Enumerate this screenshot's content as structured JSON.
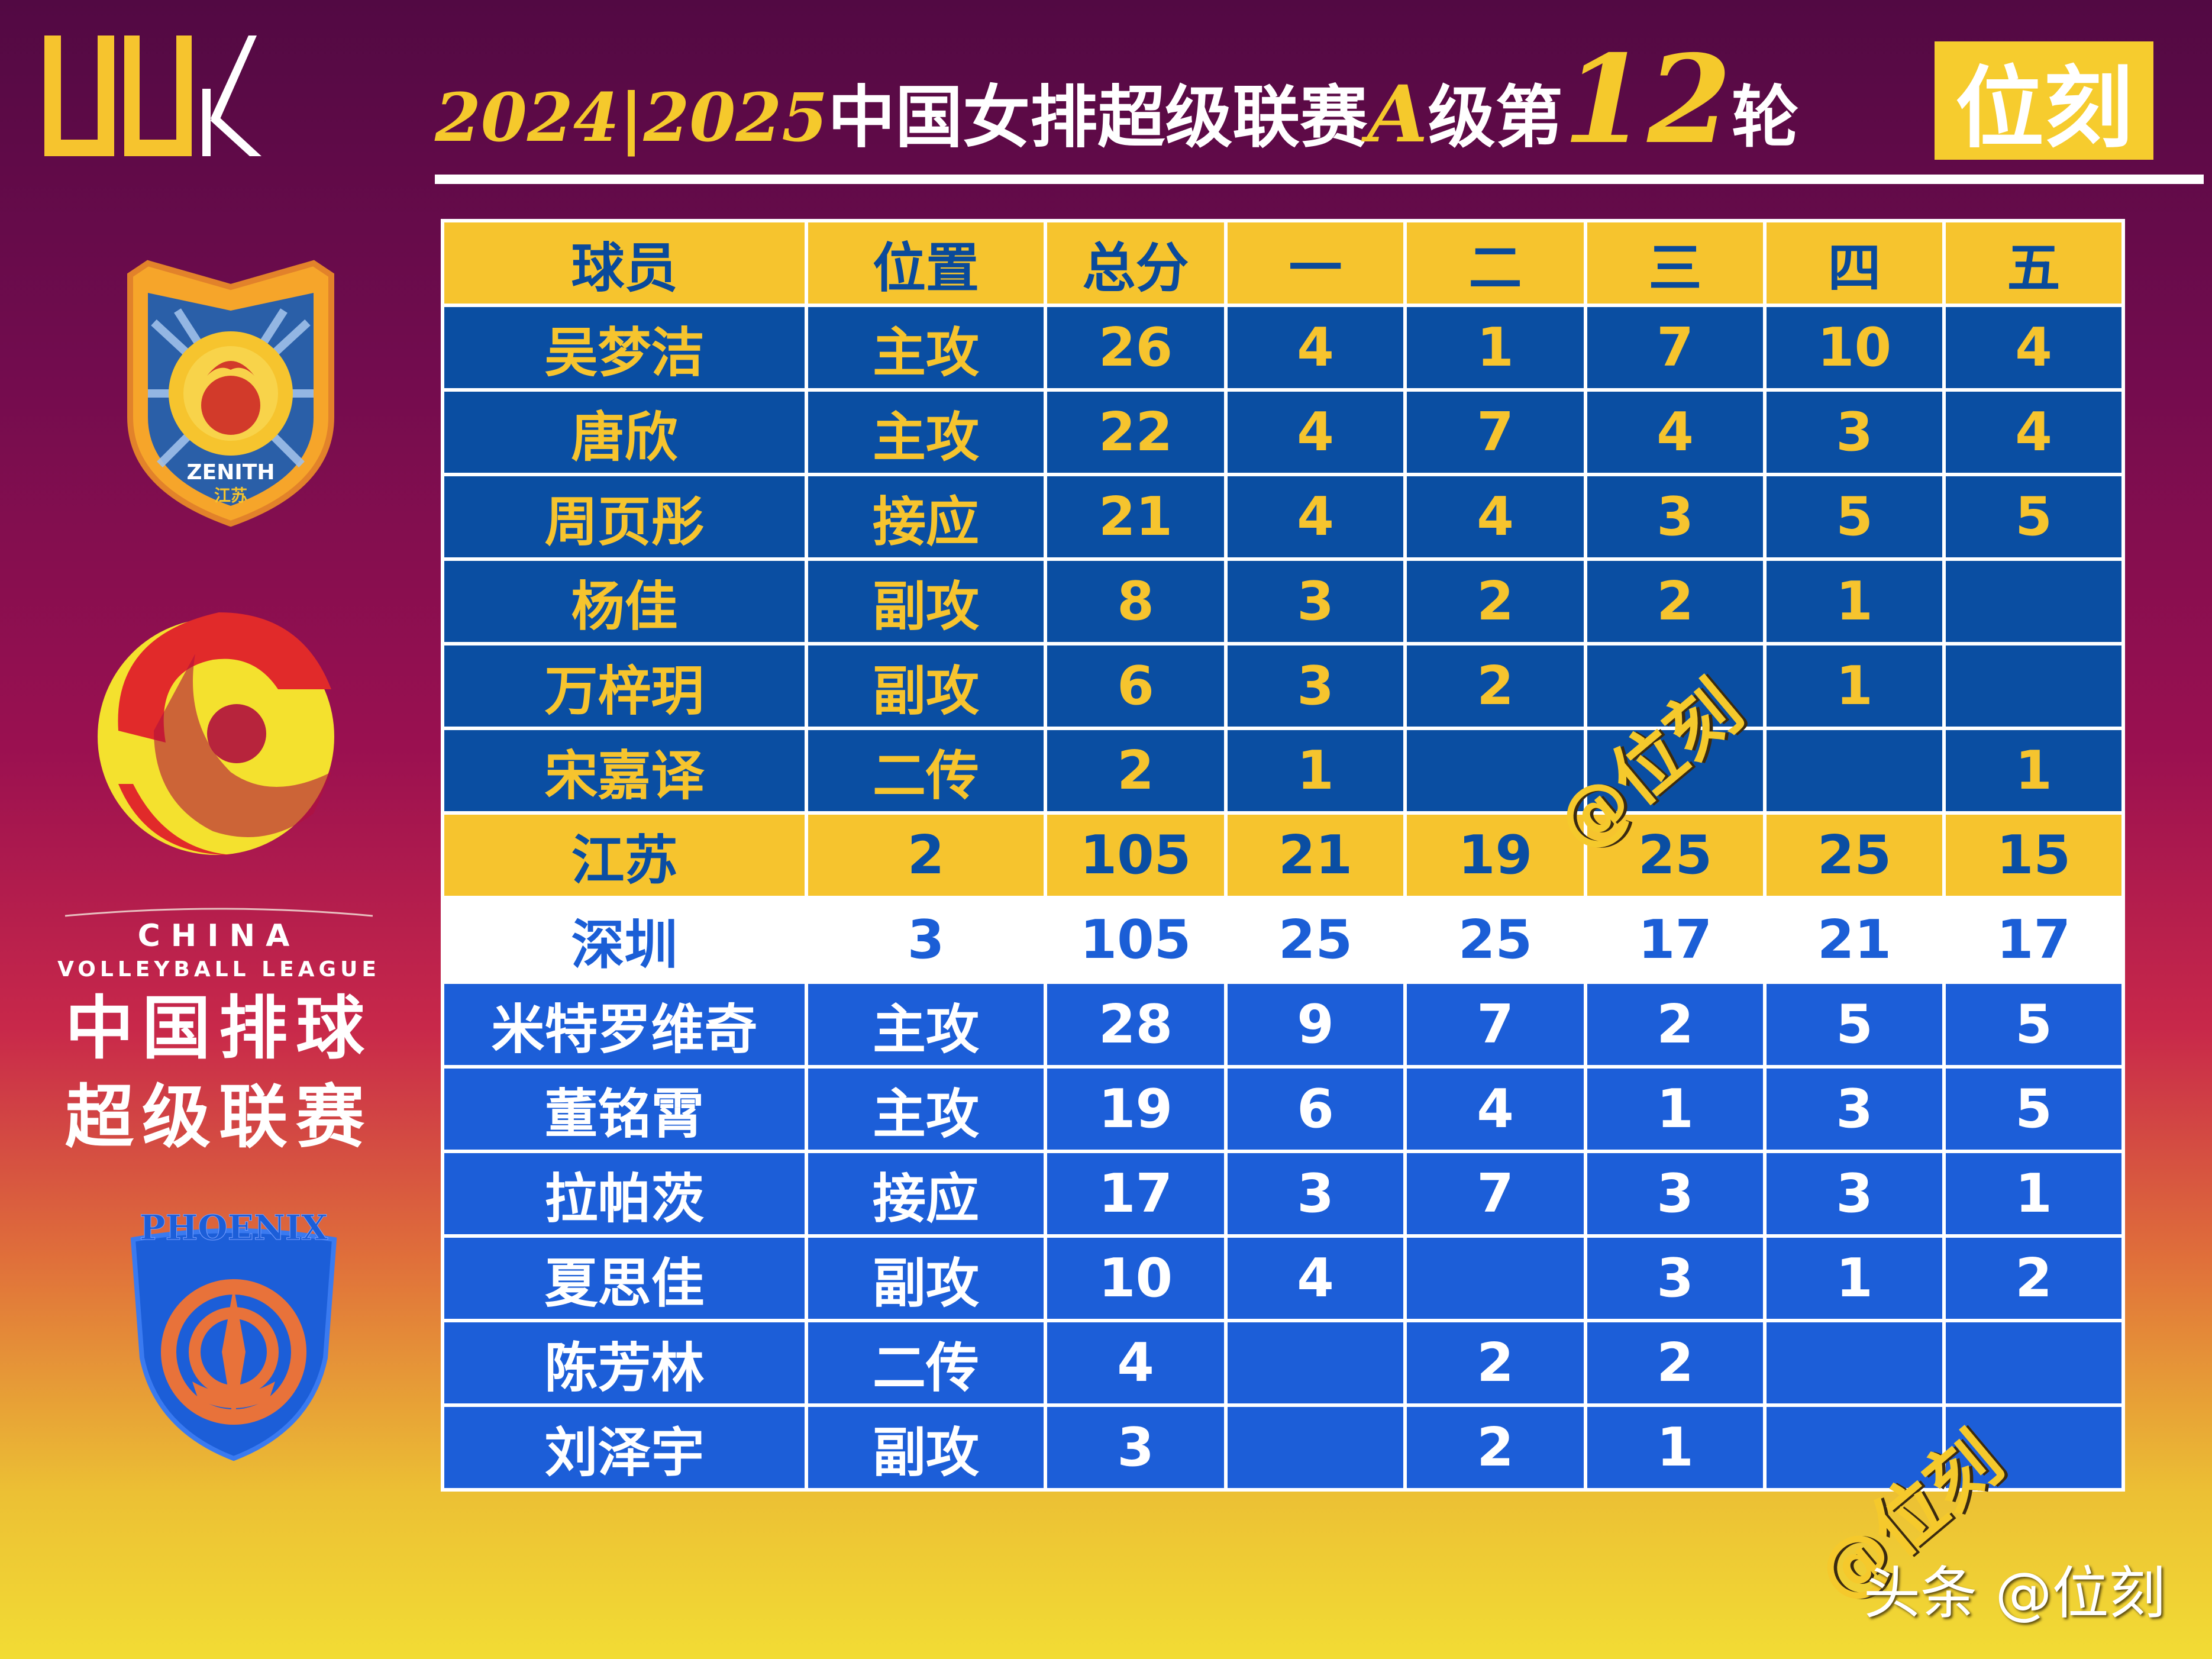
{
  "header": {
    "title_season": "2024|2025",
    "title_league": "中国女排超级联赛",
    "title_grade": "A",
    "title_level": "级第",
    "title_round_num": "12",
    "title_round_suffix": "轮",
    "badge": "位刻"
  },
  "brand_logo_text": "UUK",
  "emblems": {
    "jiangsu": "ZENITH",
    "jiangsu_cn": "江苏",
    "league_en_1": "CHINA",
    "league_en_2": "VOLLEYBALL LEAGUE",
    "league_cn_1": "中国排球",
    "league_cn_2": "超级联赛",
    "shenzhen": "PHOENIX"
  },
  "colors": {
    "header_bg": "#f6c42e",
    "jiangsu_row_bg": "#0a4ea2",
    "shenzhen_row_bg": "#1c5ed8",
    "accent_gold": "#f6c42e"
  },
  "table": {
    "columns": [
      "球员",
      "位置",
      "总分",
      "一",
      "二",
      "三",
      "四",
      "五"
    ],
    "jiangsu_players": [
      [
        "吴梦洁",
        "主攻",
        "26",
        "4",
        "1",
        "7",
        "10",
        "4"
      ],
      [
        "唐欣",
        "主攻",
        "22",
        "4",
        "7",
        "4",
        "3",
        "4"
      ],
      [
        "周页彤",
        "接应",
        "21",
        "4",
        "4",
        "3",
        "5",
        "5"
      ],
      [
        "杨佳",
        "副攻",
        "8",
        "3",
        "2",
        "2",
        "1",
        ""
      ],
      [
        "万梓玥",
        "副攻",
        "6",
        "3",
        "2",
        "",
        "1",
        ""
      ],
      [
        "宋嘉译",
        "二传",
        "2",
        "1",
        "",
        "",
        "",
        "1"
      ]
    ],
    "jiangsu_total": [
      "江苏",
      "2",
      "105",
      "21",
      "19",
      "25",
      "25",
      "15"
    ],
    "shenzhen_total": [
      "深圳",
      "3",
      "105",
      "25",
      "25",
      "17",
      "21",
      "17"
    ],
    "shenzhen_players": [
      [
        "米特罗维奇",
        "主攻",
        "28",
        "9",
        "7",
        "2",
        "5",
        "5"
      ],
      [
        "董铭霄",
        "主攻",
        "19",
        "6",
        "4",
        "1",
        "3",
        "5"
      ],
      [
        "拉帕茨",
        "接应",
        "17",
        "3",
        "7",
        "3",
        "3",
        "1"
      ],
      [
        "夏思佳",
        "副攻",
        "10",
        "4",
        "",
        "3",
        "1",
        "2"
      ],
      [
        "陈芳林",
        "二传",
        "4",
        "",
        "2",
        "2",
        "",
        ""
      ],
      [
        "刘泽宇",
        "副攻",
        "3",
        "",
        "2",
        "1",
        "",
        ""
      ]
    ]
  },
  "watermarks": [
    "@位刻",
    "@位刻"
  ],
  "credit": "头条 @位刻"
}
